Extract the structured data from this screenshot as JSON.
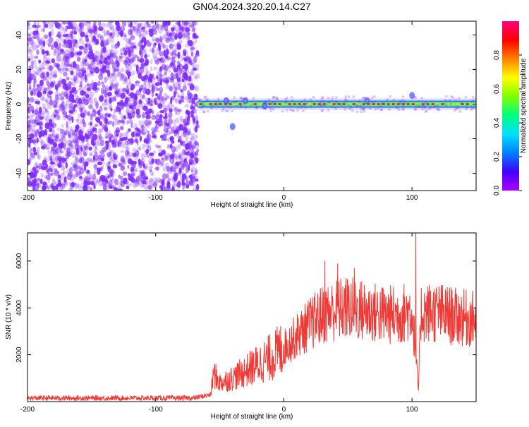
{
  "figure": {
    "title": "GN04.2024.320.20.14.C27"
  },
  "colors": {
    "spectrogram_scatter": "#7f2bff",
    "snr_line": "#ef3a36",
    "axis": "#000000",
    "colormap": [
      "#b000ff",
      "#4000ff",
      "#0080ff",
      "#00e0ff",
      "#00ff80",
      "#80ff00",
      "#ffff00",
      "#ff8000",
      "#ff0000",
      "#ff0080"
    ]
  },
  "chart_data": [
    {
      "type": "heatmap",
      "name": "spectrogram",
      "title": "",
      "xlabel": "Height of straight line (km)",
      "ylabel": "Frequency (Hz)",
      "xlim": [
        -200,
        150
      ],
      "ylim": [
        -50,
        48
      ],
      "xticks": [
        -200,
        -100,
        0,
        100
      ],
      "yticks": [
        -40,
        -20,
        0,
        20,
        40
      ],
      "noise_region_x": [
        -200,
        -67
      ],
      "signal_band": {
        "x_start": -67,
        "x_end": 150,
        "center_freq": 0,
        "features": [
          {
            "x": -45,
            "freq_offset": 2
          },
          {
            "x": -40,
            "freq_offset": -13
          },
          {
            "x": -30,
            "freq_offset": 2
          },
          {
            "x": -15,
            "freq_offset": -1
          },
          {
            "x": 65,
            "freq_offset": 2
          },
          {
            "x": 100,
            "freq_offset": 5
          }
        ]
      },
      "colorbar": {
        "label": "Normalized spectral amplitude",
        "range": [
          0,
          1
        ],
        "ticks": [
          "0.0",
          "0.2",
          "0.4",
          "0.6",
          "0.8"
        ]
      }
    },
    {
      "type": "line",
      "name": "snr",
      "title": "",
      "xlabel": "Height of straight line (km)",
      "ylabel": "SNR (10 * v/v)",
      "xlim": [
        -200,
        150
      ],
      "ylim": [
        0,
        7200
      ],
      "xticks": [
        -200,
        -100,
        0,
        100
      ],
      "yticks": [
        2000,
        4000,
        6000
      ],
      "series": [
        {
          "envelope": [
            {
              "x": -200,
              "y": 150
            },
            {
              "x": -150,
              "y": 150
            },
            {
              "x": -100,
              "y": 150
            },
            {
              "x": -70,
              "y": 150
            },
            {
              "x": -57,
              "y": 300
            },
            {
              "x": -55,
              "y": 1200
            },
            {
              "x": -50,
              "y": 800
            },
            {
              "x": -40,
              "y": 1000
            },
            {
              "x": -30,
              "y": 1300
            },
            {
              "x": -20,
              "y": 1600
            },
            {
              "x": -10,
              "y": 1900
            },
            {
              "x": 0,
              "y": 2300
            },
            {
              "x": 10,
              "y": 2800
            },
            {
              "x": 20,
              "y": 3300
            },
            {
              "x": 30,
              "y": 3700
            },
            {
              "x": 40,
              "y": 3900
            },
            {
              "x": 50,
              "y": 4000
            },
            {
              "x": 60,
              "y": 3900
            },
            {
              "x": 70,
              "y": 3800
            },
            {
              "x": 80,
              "y": 3700
            },
            {
              "x": 90,
              "y": 3700
            },
            {
              "x": 100,
              "y": 3900
            },
            {
              "x": 103,
              "y": 2000
            },
            {
              "x": 105,
              "y": 500
            },
            {
              "x": 107,
              "y": 3800
            },
            {
              "x": 120,
              "y": 3800
            },
            {
              "x": 135,
              "y": 3600
            },
            {
              "x": 150,
              "y": 3500
            }
          ],
          "peaks": [
            {
              "x": 32,
              "y": 6000
            },
            {
              "x": 42,
              "y": 5900
            },
            {
              "x": 55,
              "y": 5700
            },
            {
              "x": 103,
              "y": 7200
            }
          ]
        }
      ]
    }
  ]
}
